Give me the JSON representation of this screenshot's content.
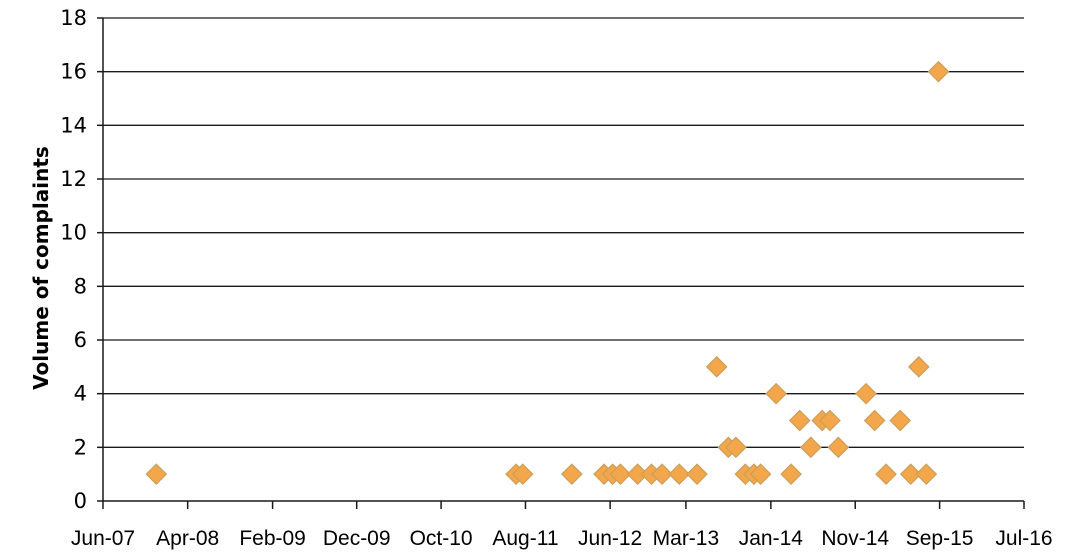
{
  "chart_data": {
    "type": "scatter",
    "title": "",
    "xlabel": "",
    "ylabel": "Volume of complaints",
    "xlim": [
      "2007-06-01",
      "2016-07-01"
    ],
    "ylim": [
      0,
      18
    ],
    "yticks": [
      0,
      2,
      4,
      6,
      8,
      10,
      12,
      14,
      16,
      18
    ],
    "xticks": [
      {
        "date": "2007-06-01",
        "label": "Jun-07"
      },
      {
        "date": "2008-04-01",
        "label": "Apr-08"
      },
      {
        "date": "2009-02-01",
        "label": "Feb-09"
      },
      {
        "date": "2009-12-01",
        "label": "Dec-09"
      },
      {
        "date": "2010-10-01",
        "label": "Oct-10"
      },
      {
        "date": "2011-08-01",
        "label": "Aug-11"
      },
      {
        "date": "2012-06-01",
        "label": "Jun-12"
      },
      {
        "date": "2013-03-01",
        "label": "Mar-13"
      },
      {
        "date": "2014-01-01",
        "label": "Jan-14"
      },
      {
        "date": "2014-11-01",
        "label": "Nov-14"
      },
      {
        "date": "2015-09-01",
        "label": "Sep-15"
      },
      {
        "date": "2016-07-01",
        "label": "Jul-16"
      }
    ],
    "grid": true,
    "marker": "diamond",
    "marker_color": "#f4a64a",
    "points": [
      {
        "x": "2007-12-10",
        "y": 1
      },
      {
        "x": "2011-06-28",
        "y": 1
      },
      {
        "x": "2011-07-22",
        "y": 1
      },
      {
        "x": "2012-01-15",
        "y": 1
      },
      {
        "x": "2012-05-10",
        "y": 1
      },
      {
        "x": "2012-06-10",
        "y": 1
      },
      {
        "x": "2012-07-08",
        "y": 1
      },
      {
        "x": "2012-09-08",
        "y": 1
      },
      {
        "x": "2012-10-28",
        "y": 1
      },
      {
        "x": "2012-12-05",
        "y": 1
      },
      {
        "x": "2013-02-05",
        "y": 1
      },
      {
        "x": "2013-04-10",
        "y": 1
      },
      {
        "x": "2013-06-20",
        "y": 5
      },
      {
        "x": "2013-08-01",
        "y": 2
      },
      {
        "x": "2013-08-28",
        "y": 2
      },
      {
        "x": "2013-10-01",
        "y": 1
      },
      {
        "x": "2013-11-01",
        "y": 1
      },
      {
        "x": "2013-11-25",
        "y": 1
      },
      {
        "x": "2014-01-20",
        "y": 4
      },
      {
        "x": "2014-03-15",
        "y": 1
      },
      {
        "x": "2014-04-15",
        "y": 3
      },
      {
        "x": "2014-05-25",
        "y": 2
      },
      {
        "x": "2014-07-05",
        "y": 3
      },
      {
        "x": "2014-08-02",
        "y": 3
      },
      {
        "x": "2014-09-01",
        "y": 2
      },
      {
        "x": "2014-12-10",
        "y": 4
      },
      {
        "x": "2015-01-10",
        "y": 3
      },
      {
        "x": "2015-02-20",
        "y": 1
      },
      {
        "x": "2015-04-12",
        "y": 3
      },
      {
        "x": "2015-05-20",
        "y": 1
      },
      {
        "x": "2015-06-18",
        "y": 5
      },
      {
        "x": "2015-07-15",
        "y": 1
      },
      {
        "x": "2015-08-28",
        "y": 16
      }
    ]
  }
}
